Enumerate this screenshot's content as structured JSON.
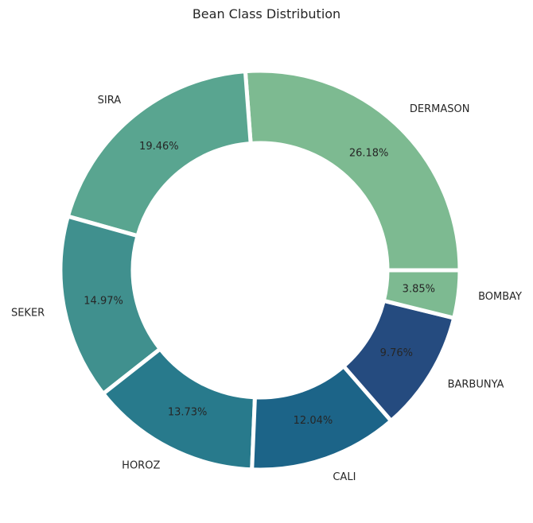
{
  "chart_data": {
    "type": "pie",
    "title": "Bean Class Distribution",
    "donut": true,
    "start_angle_deg": 0,
    "direction": "counterclockwise",
    "slices": [
      {
        "label": "DERMASON",
        "value": 26.18,
        "pct_label": "26.18%",
        "color": "#7dba91"
      },
      {
        "label": "SIRA",
        "value": 19.46,
        "pct_label": "19.46%",
        "color": "#59a590"
      },
      {
        "label": "SEKER",
        "value": 14.97,
        "pct_label": "14.97%",
        "color": "#40908e"
      },
      {
        "label": "HOROZ",
        "value": 13.73,
        "pct_label": "13.73%",
        "color": "#287a8c"
      },
      {
        "label": "CALI",
        "value": 12.04,
        "pct_label": "12.04%",
        "color": "#1c6488"
      },
      {
        "label": "BARBUNYA",
        "value": 9.76,
        "pct_label": "9.76%",
        "color": "#254b7f"
      },
      {
        "label": "BOMBAY",
        "value": 3.85,
        "pct_label": "3.85%",
        "color": "#7dba91"
      }
    ]
  }
}
